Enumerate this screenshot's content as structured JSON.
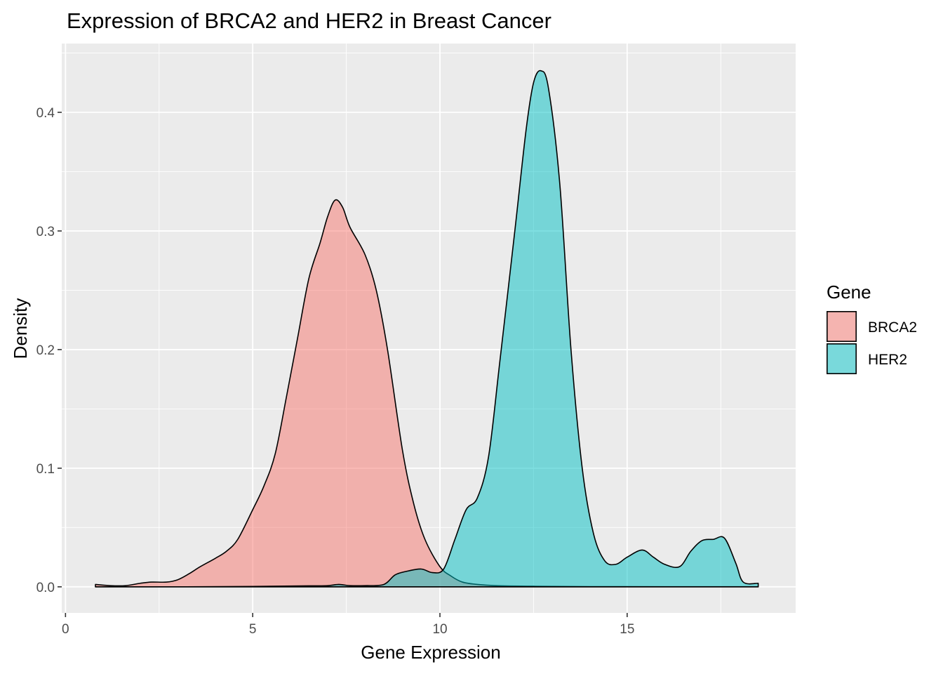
{
  "chart_data": {
    "type": "area",
    "title": "Expression of BRCA2 and HER2 in Breast Cancer",
    "xlabel": "Gene Expression",
    "ylabel": "Density",
    "xlim": [
      -0.1,
      19.5
    ],
    "ylim": [
      -0.022,
      0.458
    ],
    "x_ticks": [
      "0",
      "5",
      "10",
      "15"
    ],
    "y_ticks": [
      "0.0",
      "0.1",
      "0.2",
      "0.3",
      "0.4"
    ],
    "grid": true,
    "legend": {
      "title": "Gene",
      "placement": "right"
    },
    "series": [
      {
        "name": "BRCA2",
        "color": "#F8766D",
        "points": [
          [
            0.8,
            0.002
          ],
          [
            1.2,
            0.001
          ],
          [
            1.6,
            0.001
          ],
          [
            2.0,
            0.003
          ],
          [
            2.3,
            0.004
          ],
          [
            2.7,
            0.004
          ],
          [
            3.0,
            0.006
          ],
          [
            3.3,
            0.011
          ],
          [
            3.6,
            0.017
          ],
          [
            4.0,
            0.024
          ],
          [
            4.3,
            0.03
          ],
          [
            4.6,
            0.04
          ],
          [
            5.0,
            0.065
          ],
          [
            5.3,
            0.085
          ],
          [
            5.6,
            0.112
          ],
          [
            5.9,
            0.16
          ],
          [
            6.2,
            0.21
          ],
          [
            6.5,
            0.26
          ],
          [
            6.8,
            0.29
          ],
          [
            7.0,
            0.312
          ],
          [
            7.2,
            0.326
          ],
          [
            7.4,
            0.32
          ],
          [
            7.6,
            0.303
          ],
          [
            8.0,
            0.28
          ],
          [
            8.3,
            0.25
          ],
          [
            8.6,
            0.2
          ],
          [
            9.0,
            0.115
          ],
          [
            9.3,
            0.07
          ],
          [
            9.6,
            0.04
          ],
          [
            10.0,
            0.017
          ],
          [
            10.3,
            0.009
          ],
          [
            10.6,
            0.004
          ],
          [
            11.0,
            0.002
          ],
          [
            11.5,
            0.001
          ],
          [
            12.5,
            0.0005
          ],
          [
            14.0,
            0.0002
          ],
          [
            16.0,
            0.0001
          ],
          [
            18.5,
            0.0001
          ]
        ]
      },
      {
        "name": "HER2",
        "color": "#00BFC4",
        "points": [
          [
            0.8,
            0.0
          ],
          [
            3.0,
            0.0
          ],
          [
            5.0,
            0.0003
          ],
          [
            6.5,
            0.0008
          ],
          [
            7.0,
            0.001
          ],
          [
            7.3,
            0.002
          ],
          [
            7.6,
            0.001
          ],
          [
            8.0,
            0.001
          ],
          [
            8.5,
            0.002
          ],
          [
            8.8,
            0.01
          ],
          [
            9.1,
            0.013
          ],
          [
            9.5,
            0.015
          ],
          [
            9.8,
            0.012
          ],
          [
            10.1,
            0.015
          ],
          [
            10.4,
            0.04
          ],
          [
            10.7,
            0.065
          ],
          [
            11.0,
            0.075
          ],
          [
            11.3,
            0.11
          ],
          [
            11.6,
            0.19
          ],
          [
            12.0,
            0.3
          ],
          [
            12.3,
            0.385
          ],
          [
            12.5,
            0.425
          ],
          [
            12.7,
            0.435
          ],
          [
            12.9,
            0.42
          ],
          [
            13.2,
            0.34
          ],
          [
            13.5,
            0.2
          ],
          [
            13.8,
            0.1
          ],
          [
            14.1,
            0.045
          ],
          [
            14.4,
            0.022
          ],
          [
            14.7,
            0.019
          ],
          [
            15.0,
            0.025
          ],
          [
            15.4,
            0.031
          ],
          [
            15.7,
            0.025
          ],
          [
            16.0,
            0.019
          ],
          [
            16.4,
            0.017
          ],
          [
            16.7,
            0.03
          ],
          [
            17.0,
            0.039
          ],
          [
            17.3,
            0.04
          ],
          [
            17.6,
            0.041
          ],
          [
            17.9,
            0.02
          ],
          [
            18.1,
            0.004
          ],
          [
            18.5,
            0.003
          ]
        ]
      }
    ]
  }
}
